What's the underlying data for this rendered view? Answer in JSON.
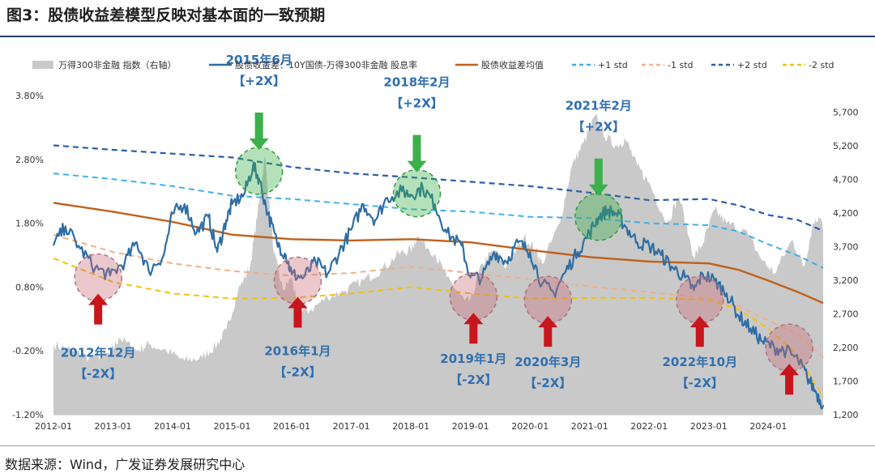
{
  "title": "图3：股债收益差模型反映对基本面的一致预期",
  "source": "数据来源：Wind，广发证券发展研究中心",
  "chart_data": {
    "type": "line",
    "left_axis": {
      "ylim": [
        -1.2,
        3.8
      ],
      "ticks": [
        "3.80%",
        "2.80%",
        "1.80%",
        "0.80%",
        "-0.20%",
        "-1.20%"
      ],
      "tick_values": [
        3.8,
        2.8,
        1.8,
        0.8,
        -0.2,
        -1.2
      ]
    },
    "right_axis": {
      "ylim": [
        1200,
        5950
      ],
      "ticks": [
        "5,700",
        "5,200",
        "4,700",
        "4,200",
        "3,700",
        "3,200",
        "2,700",
        "2,200",
        "1,700",
        "1,200"
      ],
      "tick_values": [
        5700,
        5200,
        4700,
        4200,
        3700,
        3200,
        2700,
        2200,
        1700,
        1200
      ]
    },
    "x_ticks": [
      "2012-01",
      "2013-01",
      "2014-01",
      "2015-01",
      "2016-01",
      "2017-01",
      "2018-01",
      "2019-01",
      "2020-01",
      "2021-01",
      "2022-01",
      "2023-01",
      "2024-01"
    ],
    "x_tick_values": [
      2012,
      2013,
      2014,
      2015,
      2016,
      2017,
      2018,
      2019,
      2020,
      2021,
      2022,
      2023,
      2024
    ],
    "xlim": [
      2012.0,
      2024.92
    ],
    "legend": [
      "万得300非金融 指数（右轴）",
      "股债收益差：10Y国债-万得300非金融 股息率",
      "股债收益差均值",
      "+1 std",
      "-1 std",
      "+2 std",
      "-2 std"
    ],
    "colors": {
      "area": "#c9c9c9",
      "spread": "#2e6da4",
      "mean": "#c0601a",
      "plus1": "#3fb0e8",
      "minus1": "#f2b08a",
      "plus2": "#2a5ea6",
      "minus2": "#f2c20f",
      "green": "#3cb04a",
      "red": "#c8161d"
    },
    "series": [
      {
        "name": "万得300非金融 指数（右轴）",
        "axis": "right",
        "x": [
          2012.0,
          2012.3,
          2012.6,
          2012.95,
          2013.1,
          2013.4,
          2013.6,
          2013.9,
          2014.2,
          2014.5,
          2014.75,
          2014.9,
          2015.1,
          2015.3,
          2015.45,
          2015.55,
          2015.7,
          2015.85,
          2016.0,
          2016.1,
          2016.3,
          2016.6,
          2016.9,
          2017.2,
          2017.5,
          2017.8,
          2018.0,
          2018.1,
          2018.4,
          2018.6,
          2018.9,
          2019.0,
          2019.2,
          2019.4,
          2019.6,
          2019.9,
          2020.1,
          2020.2,
          2020.5,
          2020.7,
          2020.9,
          2021.1,
          2021.25,
          2021.45,
          2021.6,
          2021.8,
          2022.0,
          2022.3,
          2022.5,
          2022.75,
          2022.9,
          2023.1,
          2023.3,
          2023.6,
          2023.9,
          2024.1,
          2024.4,
          2024.6,
          2024.75,
          2024.85,
          2024.92
        ],
        "values": [
          2250,
          2150,
          2050,
          2100,
          2350,
          2150,
          2250,
          2150,
          2000,
          2050,
          2250,
          2450,
          3050,
          3400,
          4350,
          5050,
          3600,
          3050,
          3250,
          2750,
          2750,
          2950,
          3050,
          3200,
          3350,
          3600,
          3650,
          3850,
          3600,
          3250,
          2900,
          2900,
          3450,
          3650,
          3400,
          3850,
          3650,
          3450,
          4050,
          4900,
          5250,
          5650,
          5350,
          5200,
          5300,
          4900,
          4650,
          4050,
          4450,
          3550,
          3750,
          4250,
          4050,
          3950,
          3500,
          3300,
          3800,
          3400,
          4050,
          4150,
          4000
        ]
      },
      {
        "name": "股债收益差：10Y国债-万得300非金融 股息率",
        "axis": "left",
        "x": [
          2012.0,
          2012.2,
          2012.45,
          2012.7,
          2012.95,
          2013.2,
          2013.4,
          2013.6,
          2013.85,
          2014.0,
          2014.2,
          2014.4,
          2014.6,
          2014.75,
          2014.9,
          2015.0,
          2015.2,
          2015.35,
          2015.45,
          2015.6,
          2015.75,
          2015.9,
          2016.0,
          2016.2,
          2016.4,
          2016.6,
          2016.8,
          2017.0,
          2017.2,
          2017.4,
          2017.6,
          2017.85,
          2018.0,
          2018.2,
          2018.4,
          2018.6,
          2018.85,
          2019.0,
          2019.2,
          2019.4,
          2019.6,
          2019.8,
          2020.0,
          2020.2,
          2020.4,
          2020.6,
          2020.8,
          2021.0,
          2021.15,
          2021.3,
          2021.45,
          2021.6,
          2021.8,
          2022.0,
          2022.2,
          2022.4,
          2022.6,
          2022.75,
          2022.9,
          2023.1,
          2023.3,
          2023.5,
          2023.7,
          2023.9,
          2024.1,
          2024.3,
          2024.5,
          2024.65,
          2024.8,
          2024.92
        ],
        "values": [
          1.45,
          1.75,
          1.4,
          1.1,
          0.98,
          1.2,
          1.5,
          1.05,
          1.3,
          1.95,
          2.1,
          1.65,
          1.9,
          1.35,
          1.85,
          2.1,
          2.25,
          2.7,
          2.5,
          1.95,
          1.5,
          1.3,
          1.0,
          0.95,
          1.2,
          1.0,
          1.35,
          1.7,
          2.1,
          1.85,
          2.2,
          2.3,
          2.25,
          2.35,
          2.1,
          1.65,
          1.45,
          0.95,
          0.95,
          1.35,
          1.2,
          1.5,
          1.35,
          0.85,
          0.7,
          1.05,
          1.35,
          1.65,
          1.9,
          2.0,
          1.95,
          1.75,
          1.5,
          1.45,
          1.3,
          1.1,
          0.95,
          0.75,
          1.0,
          0.9,
          0.7,
          0.35,
          0.15,
          -0.05,
          -0.15,
          -0.2,
          -0.35,
          -0.6,
          -0.85,
          -1.05
        ]
      },
      {
        "name": "股债收益差均值",
        "axis": "left",
        "x": [
          2012.0,
          2013.0,
          2014.0,
          2015.0,
          2016.0,
          2017.0,
          2018.0,
          2019.0,
          2020.0,
          2021.0,
          2022.0,
          2023.0,
          2023.5,
          2024.0,
          2024.5,
          2024.92
        ],
        "values": [
          2.12,
          1.98,
          1.82,
          1.62,
          1.55,
          1.53,
          1.55,
          1.5,
          1.38,
          1.27,
          1.2,
          1.17,
          1.07,
          0.9,
          0.72,
          0.55
        ]
      },
      {
        "name": "+1 std",
        "axis": "left",
        "x": [
          2012.0,
          2013.0,
          2014.0,
          2015.0,
          2016.0,
          2017.0,
          2018.0,
          2019.0,
          2020.0,
          2021.0,
          2022.0,
          2023.0,
          2023.5,
          2024.0,
          2024.5,
          2024.92
        ],
        "values": [
          2.58,
          2.49,
          2.38,
          2.23,
          2.18,
          2.1,
          2.02,
          1.98,
          1.9,
          1.88,
          1.8,
          1.77,
          1.67,
          1.47,
          1.29,
          1.1
        ]
      },
      {
        "name": "-1 std",
        "axis": "left",
        "x": [
          2012.0,
          2013.0,
          2014.0,
          2015.0,
          2016.0,
          2017.0,
          2018.0,
          2019.0,
          2020.0,
          2021.0,
          2022.0,
          2023.0,
          2023.5,
          2024.0,
          2024.5,
          2024.92
        ],
        "values": [
          1.62,
          1.35,
          1.17,
          1.05,
          0.98,
          1.02,
          1.12,
          1.02,
          0.92,
          0.81,
          0.72,
          0.62,
          0.5,
          0.28,
          0.05,
          -0.3
        ]
      },
      {
        "name": "+2 std",
        "axis": "left",
        "x": [
          2012.0,
          2013.0,
          2014.0,
          2015.0,
          2016.0,
          2017.0,
          2018.0,
          2019.0,
          2020.0,
          2021.0,
          2022.0,
          2023.0,
          2023.5,
          2024.0,
          2024.5,
          2024.92
        ],
        "values": [
          3.02,
          2.95,
          2.89,
          2.83,
          2.68,
          2.58,
          2.52,
          2.45,
          2.38,
          2.28,
          2.16,
          2.18,
          2.08,
          1.93,
          1.85,
          1.68
        ]
      },
      {
        "name": "-2 std",
        "axis": "left",
        "x": [
          2012.0,
          2013.0,
          2014.0,
          2015.0,
          2016.0,
          2017.0,
          2018.0,
          2019.0,
          2020.0,
          2021.0,
          2022.0,
          2023.0,
          2023.5,
          2024.0,
          2024.5,
          2024.92
        ],
        "values": [
          1.25,
          0.88,
          0.7,
          0.62,
          0.63,
          0.7,
          0.8,
          0.7,
          0.62,
          0.63,
          0.63,
          0.6,
          0.45,
          0.15,
          -0.28,
          -0.92
        ]
      }
    ],
    "annotations": [
      {
        "kind": "green",
        "date": "2015年6月",
        "level": "【+2X】",
        "x": 2015.45,
        "y": 2.62
      },
      {
        "kind": "green",
        "date": "2018年2月",
        "level": "【+2X】",
        "x": 2018.1,
        "y": 2.27
      },
      {
        "kind": "green",
        "date": "2021年2月",
        "level": "【+2X】",
        "x": 2021.15,
        "y": 1.9
      },
      {
        "kind": "red",
        "date": "2012年12月",
        "level": "【-2X】",
        "x": 2012.75,
        "y": 0.95
      },
      {
        "kind": "red",
        "date": "2016年1月",
        "level": "【-2X】",
        "x": 2016.1,
        "y": 0.9
      },
      {
        "kind": "red",
        "date": "2019年1月",
        "level": "【-2X】",
        "x": 2019.05,
        "y": 0.65
      },
      {
        "kind": "red",
        "date": "2020年3月",
        "level": "【-2X】",
        "x": 2020.3,
        "y": 0.6
      },
      {
        "kind": "red",
        "date": "2022年10月",
        "level": "【-2X】",
        "x": 2022.85,
        "y": 0.6
      },
      {
        "kind": "red",
        "date": "",
        "level": "",
        "x": 2024.35,
        "y": -0.15
      }
    ]
  }
}
